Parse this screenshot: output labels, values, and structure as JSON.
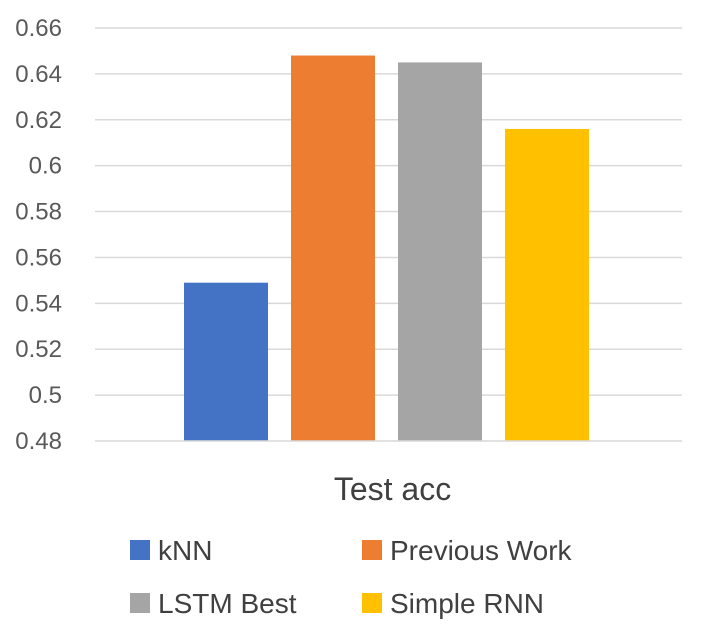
{
  "chart_data": {
    "type": "bar",
    "categories": [
      "Test acc"
    ],
    "series": [
      {
        "name": "kNN",
        "values": [
          0.549
        ],
        "color": "#4472C4"
      },
      {
        "name": "Previous Work",
        "values": [
          0.648
        ],
        "color": "#ED7D31"
      },
      {
        "name": "LSTM Best",
        "values": [
          0.645
        ],
        "color": "#A5A5A5"
      },
      {
        "name": "Simple RNN",
        "values": [
          0.616
        ],
        "color": "#FFC000"
      }
    ],
    "ylim": [
      0.48,
      0.66
    ],
    "yticks": [
      "0.48",
      "0.5",
      "0.52",
      "0.54",
      "0.56",
      "0.58",
      "0.6",
      "0.62",
      "0.64",
      "0.66"
    ],
    "grid": true,
    "legend_position": "bottom"
  }
}
